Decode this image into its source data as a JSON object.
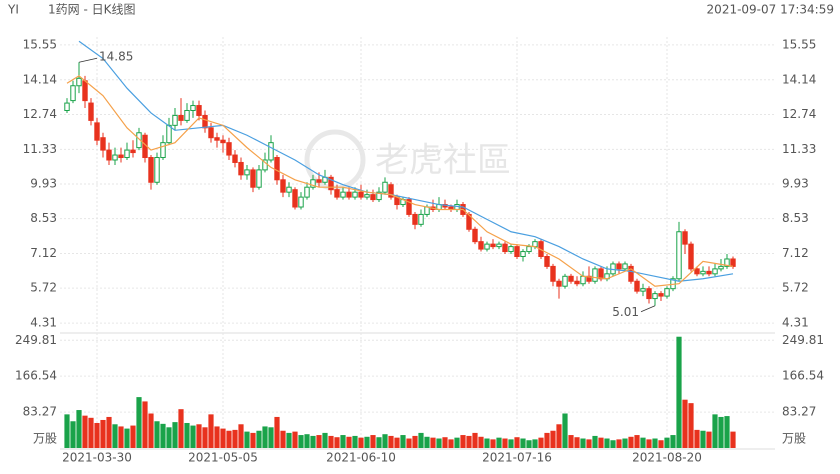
{
  "header": {
    "symbol": "YI",
    "title": "1药网 - 日K线图",
    "timestamp": "2021-09-07 17:34:59"
  },
  "chart_data": {
    "type": "candlestick",
    "watermark": "老虎社區",
    "up_color": "#1aa34a",
    "down_color": "#e8321e",
    "categories": [
      null,
      null,
      null,
      null,
      null,
      "2021-03-30",
      null,
      null,
      null,
      null,
      null,
      null,
      null,
      null,
      null,
      null,
      null,
      null,
      null,
      null,
      null,
      null,
      null,
      null,
      null,
      null,
      "2021-05-05",
      null,
      null,
      null,
      null,
      null,
      null,
      null,
      null,
      null,
      null,
      null,
      null,
      null,
      null,
      null,
      null,
      null,
      null,
      null,
      null,
      null,
      null,
      "2021-06-10",
      null,
      null,
      null,
      null,
      null,
      null,
      null,
      null,
      null,
      null,
      null,
      null,
      null,
      null,
      null,
      null,
      null,
      null,
      null,
      null,
      null,
      null,
      null,
      null,
      null,
      "2021-07-16",
      null,
      null,
      null,
      null,
      null,
      null,
      null,
      null,
      null,
      null,
      null,
      null,
      null,
      null,
      null,
      null,
      null,
      null,
      null,
      null,
      null,
      null,
      null,
      null,
      "2021-08-20",
      null,
      null,
      null,
      null,
      null,
      null,
      null,
      null,
      null,
      null,
      null
    ],
    "candles": [
      [
        12.9,
        13.4,
        12.8,
        13.2
      ],
      [
        13.3,
        14.1,
        13.2,
        13.9
      ],
      [
        13.9,
        14.85,
        13.6,
        14.2
      ],
      [
        14.1,
        14.3,
        13.0,
        13.3
      ],
      [
        13.2,
        13.4,
        12.3,
        12.5
      ],
      [
        12.4,
        12.6,
        11.5,
        11.7
      ],
      [
        11.8,
        12.0,
        11.0,
        11.3
      ],
      [
        11.3,
        11.6,
        10.7,
        10.9
      ],
      [
        10.9,
        11.4,
        10.7,
        11.1
      ],
      [
        11.1,
        11.4,
        10.8,
        11.0
      ],
      [
        11.0,
        11.6,
        10.9,
        11.3
      ],
      [
        11.3,
        11.7,
        11.0,
        11.2
      ],
      [
        11.4,
        12.2,
        11.3,
        12.0
      ],
      [
        11.9,
        12.0,
        10.8,
        11.0
      ],
      [
        11.0,
        11.1,
        9.7,
        10.0
      ],
      [
        10.0,
        11.2,
        9.9,
        11.0
      ],
      [
        11.0,
        11.9,
        10.9,
        11.6
      ],
      [
        11.6,
        12.6,
        11.5,
        12.3
      ],
      [
        12.3,
        13.0,
        12.1,
        12.7
      ],
      [
        12.7,
        13.4,
        12.3,
        12.5
      ],
      [
        12.5,
        13.2,
        12.4,
        12.9
      ],
      [
        12.9,
        13.3,
        12.6,
        13.1
      ],
      [
        13.1,
        13.3,
        12.5,
        12.7
      ],
      [
        12.7,
        12.9,
        12.0,
        12.2
      ],
      [
        12.2,
        12.4,
        11.6,
        11.8
      ],
      [
        11.8,
        12.0,
        11.4,
        11.7
      ],
      [
        11.7,
        11.9,
        11.2,
        11.6
      ],
      [
        11.6,
        11.8,
        10.9,
        11.1
      ],
      [
        11.1,
        11.3,
        10.6,
        10.8
      ],
      [
        10.8,
        11.0,
        10.1,
        10.3
      ],
      [
        10.3,
        10.7,
        10.1,
        10.5
      ],
      [
        10.5,
        10.6,
        9.6,
        9.8
      ],
      [
        9.8,
        10.7,
        9.7,
        10.5
      ],
      [
        10.5,
        11.2,
        10.4,
        10.9
      ],
      [
        10.9,
        11.9,
        10.8,
        11.6
      ],
      [
        11.0,
        11.1,
        9.9,
        10.1
      ],
      [
        10.1,
        10.3,
        9.4,
        9.6
      ],
      [
        9.6,
        10.0,
        9.4,
        9.8
      ],
      [
        9.7,
        9.8,
        8.9,
        9.0
      ],
      [
        9.0,
        9.6,
        8.9,
        9.4
      ],
      [
        9.4,
        10.0,
        9.3,
        9.8
      ],
      [
        9.8,
        10.3,
        9.7,
        10.1
      ],
      [
        10.1,
        10.4,
        9.8,
        10.0
      ],
      [
        10.0,
        10.5,
        9.9,
        10.2
      ],
      [
        10.2,
        10.3,
        9.5,
        9.7
      ],
      [
        9.7,
        9.9,
        9.3,
        9.4
      ],
      [
        9.4,
        9.8,
        9.3,
        9.6
      ],
      [
        9.6,
        9.8,
        9.3,
        9.4
      ],
      [
        9.4,
        9.8,
        9.3,
        9.6
      ],
      [
        9.6,
        9.9,
        9.3,
        9.4
      ],
      [
        9.4,
        9.7,
        9.3,
        9.5
      ],
      [
        9.5,
        9.7,
        9.2,
        9.3
      ],
      [
        9.3,
        9.8,
        9.2,
        9.6
      ],
      [
        9.6,
        10.2,
        9.5,
        10.0
      ],
      [
        9.9,
        10.0,
        9.3,
        9.4
      ],
      [
        9.4,
        9.5,
        8.9,
        9.1
      ],
      [
        9.1,
        9.4,
        9.0,
        9.3
      ],
      [
        9.3,
        9.4,
        8.6,
        8.7
      ],
      [
        8.7,
        8.8,
        8.1,
        8.3
      ],
      [
        8.3,
        8.9,
        8.2,
        8.7
      ],
      [
        8.7,
        9.1,
        8.6,
        9.0
      ],
      [
        9.0,
        9.3,
        8.8,
        8.9
      ],
      [
        8.9,
        9.4,
        8.8,
        9.1
      ],
      [
        9.1,
        9.3,
        8.9,
        9.0
      ],
      [
        9.0,
        9.1,
        8.8,
        8.9
      ],
      [
        8.9,
        9.3,
        8.8,
        9.1
      ],
      [
        9.1,
        9.2,
        8.6,
        8.7
      ],
      [
        8.7,
        8.8,
        8.0,
        8.1
      ],
      [
        8.1,
        8.2,
        7.5,
        7.6
      ],
      [
        7.6,
        7.8,
        7.2,
        7.3
      ],
      [
        7.3,
        7.6,
        7.2,
        7.5
      ],
      [
        7.5,
        7.7,
        7.3,
        7.4
      ],
      [
        7.4,
        7.6,
        7.3,
        7.5
      ],
      [
        7.5,
        7.6,
        7.1,
        7.2
      ],
      [
        7.2,
        7.5,
        7.1,
        7.4
      ],
      [
        7.4,
        7.5,
        6.9,
        7.0
      ],
      [
        7.0,
        7.3,
        6.8,
        7.2
      ],
      [
        7.2,
        7.5,
        7.1,
        7.4
      ],
      [
        7.4,
        7.7,
        7.3,
        7.6
      ],
      [
        7.6,
        7.7,
        6.9,
        7.0
      ],
      [
        7.0,
        7.1,
        6.5,
        6.6
      ],
      [
        6.6,
        6.7,
        5.8,
        6.0
      ],
      [
        6.0,
        6.1,
        5.3,
        5.8
      ],
      [
        5.8,
        6.3,
        5.7,
        6.2
      ],
      [
        6.2,
        6.3,
        5.9,
        6.0
      ],
      [
        6.0,
        6.2,
        5.8,
        5.9
      ],
      [
        5.9,
        6.4,
        5.8,
        6.2
      ],
      [
        6.2,
        6.6,
        5.9,
        6.0
      ],
      [
        6.0,
        6.6,
        5.9,
        6.5
      ],
      [
        6.5,
        6.6,
        6.0,
        6.1
      ],
      [
        6.1,
        6.6,
        6.0,
        6.3
      ],
      [
        6.3,
        6.8,
        6.2,
        6.7
      ],
      [
        6.7,
        6.8,
        6.3,
        6.5
      ],
      [
        6.5,
        6.8,
        6.4,
        6.7
      ],
      [
        6.6,
        6.7,
        5.9,
        6.0
      ],
      [
        6.0,
        6.1,
        5.5,
        5.6
      ],
      [
        5.6,
        5.9,
        5.4,
        5.7
      ],
      [
        5.7,
        5.8,
        5.1,
        5.3
      ],
      [
        5.3,
        5.6,
        5.01,
        5.5
      ],
      [
        5.5,
        5.6,
        5.2,
        5.4
      ],
      [
        5.4,
        5.8,
        5.3,
        5.7
      ],
      [
        5.7,
        6.2,
        5.6,
        6.1
      ],
      [
        6.1,
        8.4,
        6.0,
        8.0
      ],
      [
        8.0,
        8.1,
        7.1,
        7.5
      ],
      [
        7.5,
        7.6,
        6.4,
        6.5
      ],
      [
        6.5,
        6.6,
        6.2,
        6.3
      ],
      [
        6.3,
        6.6,
        6.2,
        6.4
      ],
      [
        6.4,
        6.6,
        6.2,
        6.3
      ],
      [
        6.3,
        6.7,
        6.2,
        6.5
      ],
      [
        6.5,
        6.9,
        6.4,
        6.6
      ],
      [
        6.6,
        7.1,
        6.5,
        6.9
      ],
      [
        6.9,
        7.0,
        6.5,
        6.6
      ]
    ],
    "volume": [
      78,
      62,
      88,
      75,
      70,
      58,
      65,
      72,
      55,
      50,
      45,
      52,
      118,
      108,
      80,
      62,
      56,
      48,
      60,
      90,
      58,
      52,
      55,
      48,
      78,
      50,
      45,
      40,
      42,
      55,
      38,
      35,
      40,
      50,
      48,
      72,
      40,
      35,
      38,
      30,
      32,
      28,
      30,
      35,
      28,
      25,
      30,
      26,
      28,
      24,
      26,
      30,
      25,
      32,
      28,
      24,
      30,
      22,
      28,
      35,
      26,
      24,
      22,
      25,
      20,
      24,
      30,
      28,
      35,
      26,
      22,
      20,
      24,
      22,
      20,
      25,
      22,
      18,
      20,
      24,
      35,
      40,
      55,
      80,
      30,
      25,
      22,
      20,
      28,
      24,
      22,
      18,
      20,
      22,
      26,
      30,
      24,
      20,
      22,
      18,
      24,
      30,
      258,
      112,
      104,
      42,
      40,
      38,
      78,
      72,
      74,
      38
    ],
    "overlays": [
      {
        "color": "#4a9fe0",
        "x": [
          2,
          6,
          10,
          14,
          18,
          22,
          26,
          30,
          34,
          38,
          42,
          46,
          50,
          54,
          58,
          62,
          66,
          70,
          74,
          78,
          82,
          86,
          90,
          94,
          98,
          102,
          106,
          111
        ],
        "values": [
          15.7,
          15.0,
          13.8,
          12.8,
          12.1,
          12.2,
          12.3,
          11.9,
          11.4,
          10.9,
          10.3,
          9.9,
          9.6,
          9.5,
          9.3,
          9.1,
          9.0,
          8.5,
          8.0,
          7.8,
          7.4,
          6.9,
          6.5,
          6.4,
          6.2,
          6.0,
          6.1,
          6.3
        ]
      },
      {
        "color": "#f5a14a",
        "x": [
          0,
          2,
          6,
          10,
          14,
          18,
          22,
          26,
          30,
          34,
          38,
          42,
          46,
          50,
          54,
          58,
          62,
          66,
          70,
          74,
          78,
          82,
          86,
          90,
          94,
          98,
          102,
          106,
          111
        ],
        "values": [
          14.0,
          14.3,
          13.5,
          12.2,
          11.3,
          11.6,
          12.6,
          12.3,
          11.4,
          10.6,
          10.1,
          9.8,
          9.8,
          9.6,
          9.5,
          9.1,
          8.9,
          8.9,
          8.0,
          7.5,
          7.4,
          6.9,
          6.2,
          6.1,
          6.5,
          5.8,
          5.9,
          6.8,
          6.6
        ]
      }
    ],
    "high_label": "14.85",
    "low_label": "5.01",
    "ylim": [
      4.03,
      15.87
    ],
    "yticks": [
      4.31,
      5.72,
      7.12,
      8.53,
      9.93,
      11.33,
      12.74,
      14.14,
      15.55
    ],
    "volume_ylim": [
      0,
      262
    ],
    "volume_yticks": [
      83.27,
      166.54,
      249.81
    ],
    "volume_unit": "万股"
  }
}
